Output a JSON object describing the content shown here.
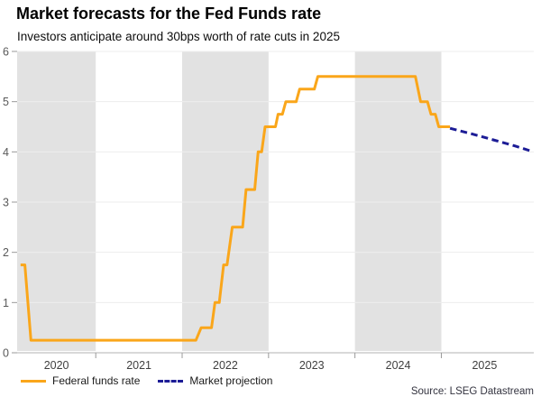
{
  "chart_data": {
    "type": "line",
    "title": "Market forecasts for the Fed Funds rate",
    "subtitle": "Investors anticipate around 30bps worth of rate cuts in 2025",
    "source": "Source: LSEG Datastream",
    "x_domain": [
      2020.09,
      2026.07
    ],
    "ylim": [
      0,
      6
    ],
    "y_ticks": [
      0,
      1,
      2,
      3,
      4,
      5,
      6
    ],
    "x_year_boundaries": [
      2021,
      2022,
      2023,
      2024,
      2025
    ],
    "x_labels": [
      {
        "label": "2020",
        "center": 2020.545
      },
      {
        "label": "2021",
        "center": 2021.5
      },
      {
        "label": "2022",
        "center": 2022.5
      },
      {
        "label": "2023",
        "center": 2023.5
      },
      {
        "label": "2024",
        "center": 2024.5
      },
      {
        "label": "2025",
        "center": 2025.5
      }
    ],
    "shaded_bands": [
      [
        2020.09,
        2021
      ],
      [
        2022,
        2023
      ],
      [
        2024,
        2025
      ]
    ],
    "grid": true,
    "legend_position": "bottom-left",
    "series": [
      {
        "name": "Federal funds rate",
        "style": "solid",
        "color": "#FAA61A",
        "points": [
          [
            2020.13,
            1.75
          ],
          [
            2020.18,
            1.75
          ],
          [
            2020.25,
            0.25
          ],
          [
            2022.16,
            0.25
          ],
          [
            2022.22,
            0.5
          ],
          [
            2022.34,
            0.5
          ],
          [
            2022.38,
            1.0
          ],
          [
            2022.43,
            1.0
          ],
          [
            2022.48,
            1.75
          ],
          [
            2022.52,
            1.75
          ],
          [
            2022.58,
            2.5
          ],
          [
            2022.7,
            2.5
          ],
          [
            2022.74,
            3.25
          ],
          [
            2022.84,
            3.25
          ],
          [
            2022.88,
            4.0
          ],
          [
            2022.92,
            4.0
          ],
          [
            2022.96,
            4.5
          ],
          [
            2023.08,
            4.5
          ],
          [
            2023.11,
            4.75
          ],
          [
            2023.16,
            4.75
          ],
          [
            2023.2,
            5.0
          ],
          [
            2023.32,
            5.0
          ],
          [
            2023.36,
            5.25
          ],
          [
            2023.53,
            5.25
          ],
          [
            2023.57,
            5.5
          ],
          [
            2024.7,
            5.5
          ],
          [
            2024.76,
            5.0
          ],
          [
            2024.84,
            5.0
          ],
          [
            2024.88,
            4.75
          ],
          [
            2024.93,
            4.75
          ],
          [
            2024.97,
            4.5
          ],
          [
            2025.1,
            4.5
          ]
        ]
      },
      {
        "name": "Market projection",
        "style": "dashed",
        "color": "#1C1C96",
        "points": [
          [
            2025.1,
            4.47
          ],
          [
            2025.35,
            4.36
          ],
          [
            2025.6,
            4.24
          ],
          [
            2025.85,
            4.12
          ],
          [
            2026.03,
            4.02
          ]
        ]
      }
    ],
    "colors": {
      "band": "#E2E2E2",
      "grid": "#EDEDED",
      "axis_line": "#B3B3B3",
      "tick": "#999999",
      "y_label": "#595959",
      "x_label": "#3F3F3F",
      "source_text": "#33333F"
    }
  }
}
